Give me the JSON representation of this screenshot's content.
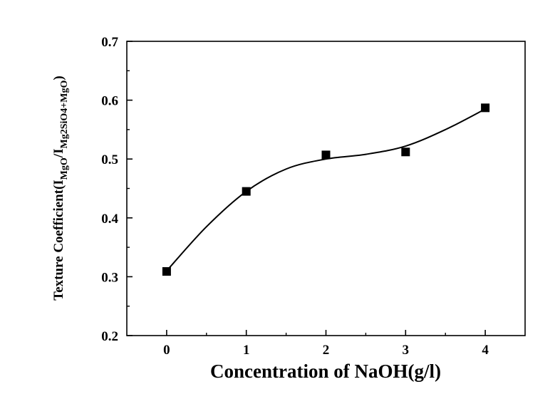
{
  "chart_data": {
    "type": "scatter",
    "xlabel": "Concentration of NaOH(g/l)",
    "ylabel": {
      "prefix": "Texture Coefficient(I",
      "sub1": "MgO",
      "mid": "/I",
      "sub2": "Mg2SiO4+MgO",
      "suffix": ")"
    },
    "xlim": [
      -0.5,
      4.5
    ],
    "ylim": [
      0.2,
      0.7
    ],
    "x_ticks": [
      0,
      1,
      2,
      3,
      4
    ],
    "y_ticks": [
      0.2,
      0.3,
      0.4,
      0.5,
      0.6,
      0.7
    ],
    "x_tick_labels": [
      "0",
      "1",
      "2",
      "3",
      "4"
    ],
    "y_tick_labels": [
      "0.2",
      "0.3",
      "0.4",
      "0.5",
      "0.6",
      "0.7"
    ],
    "grid": false,
    "series": [
      {
        "marker": "square",
        "color": "#000000",
        "x": [
          0,
          1,
          2,
          3,
          4
        ],
        "y": [
          0.309,
          0.445,
          0.507,
          0.512,
          0.587
        ]
      }
    ],
    "fit_curve": {
      "style": "smooth",
      "color": "#000000",
      "x": [
        0,
        0.5,
        1,
        1.5,
        2,
        2.5,
        3,
        3.5,
        4
      ],
      "y": [
        0.31,
        0.385,
        0.445,
        0.483,
        0.5,
        0.508,
        0.522,
        0.55,
        0.585
      ]
    }
  }
}
